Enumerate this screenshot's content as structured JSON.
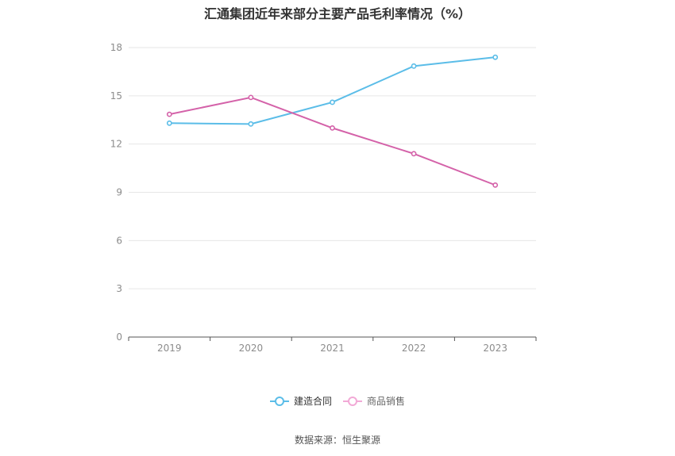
{
  "chart_data": {
    "type": "line",
    "title": "汇通集团近年来部分主要产品毛利率情况（%）",
    "categories": [
      "2019",
      "2020",
      "2021",
      "2022",
      "2023"
    ],
    "ylim": [
      0,
      18
    ],
    "yticks": [
      0,
      3,
      6,
      9,
      12,
      15,
      18
    ],
    "grid": true,
    "legend_position": "bottom",
    "series": [
      {
        "name": "建造合同",
        "values": [
          13.3,
          13.25,
          14.6,
          16.85,
          17.4
        ],
        "color": "#5BBDE8"
      },
      {
        "name": "商品销售",
        "values": [
          13.85,
          14.9,
          13.0,
          11.4,
          9.45
        ],
        "color": "#D462A9"
      }
    ]
  },
  "source": "数据来源：恒生聚源"
}
